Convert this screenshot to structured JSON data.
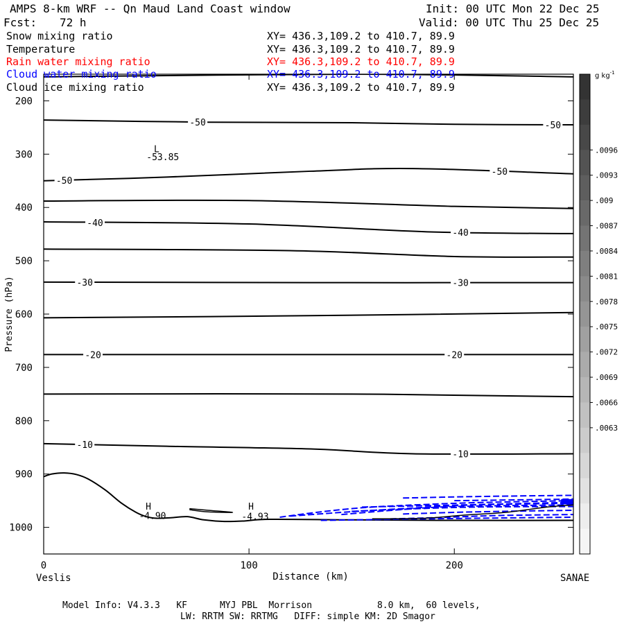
{
  "header": {
    "title": "AMPS 8-km WRF -- Qn Maud Land Coast window",
    "init": "Init: 00 UTC Mon 22 Dec 25",
    "fcst_label": "Fcst:",
    "fcst_value": "72 h",
    "valid": "Valid: 00 UTC Thu 25 Dec 25"
  },
  "fields": [
    {
      "name": "Snow mixing ratio",
      "xy": "XY= 436.3,109.2 to 410.7, 89.9",
      "color": "#000000"
    },
    {
      "name": "Temperature",
      "xy": "XY= 436.3,109.2 to 410.7, 89.9",
      "color": "#000000"
    },
    {
      "name": "Rain water mixing ratio",
      "xy": "XY= 436.3,109.2 to 410.7, 89.9",
      "color": "#ff0000"
    },
    {
      "name": "Cloud water mixing ratio",
      "xy": "XY= 436.3,109.2 to 410.7, 89.9",
      "color": "#0000ff"
    },
    {
      "name": "Cloud ice mixing ratio",
      "xy": "XY= 436.3,109.2 to 410.7, 89.9",
      "color": "#000000"
    }
  ],
  "footer": {
    "line1": "Model Info: V4.3.3   KF      MYJ PBL  Morrison            8.0 km,  60 levels,",
    "line2": "LW: RRTM SW: RRTMG   DIFF: simple KM: 2D Smagor"
  },
  "chart_data": {
    "type": "line",
    "subtype": "vertical cross-section (pressure vs distance)",
    "xlabel": "Distance (km)",
    "ylabel": "Pressure (hPa)",
    "xlim": [
      0,
      258
    ],
    "ylim": [
      1050,
      150
    ],
    "x_ticks": [
      0,
      100,
      200
    ],
    "y_ticks": [
      200,
      300,
      400,
      500,
      600,
      700,
      800,
      900,
      1000
    ],
    "x_endpoint_labels": {
      "left": "Veslis",
      "right": "SANAE"
    },
    "colorbar": {
      "unit_label": "g kg",
      "unit_exponent": "-1",
      "tick_labels": [
        ".0096",
        ".0093",
        ".009",
        ".0087",
        ".0084",
        ".0081",
        ".0078",
        ".0075",
        ".0072",
        ".0069",
        ".0066",
        ".0063"
      ],
      "colors": [
        "#333333",
        "#3d3d3d",
        "#484848",
        "#535353",
        "#5e5e5e",
        "#696969",
        "#747474",
        "#7f7f7f",
        "#8a8a8a",
        "#959595",
        "#a0a0a0",
        "#ababab",
        "#b6b6b6",
        "#c1c1c1",
        "#cccccc",
        "#d7d7d7",
        "#e2e2e2",
        "#ededed",
        "#f5f5f5"
      ]
    },
    "temperature_isotherms": [
      {
        "value": -55,
        "points": [
          [
            0,
            155
          ],
          [
            150,
            150
          ],
          [
            258,
            155
          ]
        ],
        "labels": []
      },
      {
        "value": -50,
        "points": [
          [
            0,
            236
          ],
          [
            80,
            240
          ],
          [
            150,
            241
          ],
          [
            200,
            244
          ],
          [
            258,
            245
          ]
        ],
        "labels": [
          {
            "text": "-50",
            "x": 75
          },
          {
            "text": "-50",
            "x": 248
          }
        ]
      },
      {
        "value": -50,
        "points": [
          [
            0,
            350
          ],
          [
            60,
            343
          ],
          [
            130,
            332
          ],
          [
            180,
            327
          ],
          [
            258,
            337
          ]
        ],
        "labels": [
          {
            "text": "-50",
            "x": 10
          },
          {
            "text": "-50",
            "x": 222
          }
        ]
      },
      {
        "value": -45,
        "points": [
          [
            0,
            388
          ],
          [
            100,
            387
          ],
          [
            200,
            398
          ],
          [
            258,
            402
          ]
        ],
        "labels": []
      },
      {
        "value": -40,
        "points": [
          [
            0,
            427
          ],
          [
            100,
            431
          ],
          [
            190,
            446
          ],
          [
            258,
            449
          ]
        ],
        "labels": [
          {
            "text": "-40",
            "x": 25
          },
          {
            "text": "-40",
            "x": 203
          }
        ]
      },
      {
        "value": -35,
        "points": [
          [
            0,
            478
          ],
          [
            120,
            481
          ],
          [
            200,
            492
          ],
          [
            258,
            493
          ]
        ],
        "labels": []
      },
      {
        "value": -30,
        "points": [
          [
            0,
            540
          ],
          [
            130,
            541
          ],
          [
            258,
            541
          ]
        ],
        "labels": [
          {
            "text": "-30",
            "x": 20
          },
          {
            "text": "-30",
            "x": 203
          }
        ]
      },
      {
        "value": -25,
        "points": [
          [
            0,
            607
          ],
          [
            130,
            603
          ],
          [
            258,
            597
          ]
        ],
        "labels": []
      },
      {
        "value": -20,
        "points": [
          [
            0,
            676
          ],
          [
            150,
            676
          ],
          [
            258,
            676
          ]
        ],
        "labels": [
          {
            "text": "-20",
            "x": 24
          },
          {
            "text": "-20",
            "x": 200
          }
        ]
      },
      {
        "value": -15,
        "points": [
          [
            0,
            750
          ],
          [
            150,
            750
          ],
          [
            258,
            755
          ]
        ],
        "labels": []
      },
      {
        "value": -10,
        "points": [
          [
            0,
            843
          ],
          [
            60,
            848
          ],
          [
            130,
            853
          ],
          [
            180,
            862
          ],
          [
            258,
            862
          ]
        ],
        "labels": [
          {
            "text": "-10",
            "x": 20
          },
          {
            "text": "-10",
            "x": 203
          }
        ]
      }
    ],
    "terrain": {
      "points": [
        [
          0,
          905
        ],
        [
          4,
          900
        ],
        [
          10,
          898
        ],
        [
          16,
          901
        ],
        [
          22,
          910
        ],
        [
          30,
          930
        ],
        [
          38,
          955
        ],
        [
          45,
          972
        ],
        [
          50,
          980
        ],
        [
          55,
          983
        ],
        [
          62,
          982
        ],
        [
          70,
          980
        ],
        [
          78,
          986
        ],
        [
          88,
          989
        ],
        [
          98,
          988
        ],
        [
          110,
          985
        ],
        [
          150,
          986
        ],
        [
          200,
          987
        ],
        [
          258,
          987
        ]
      ]
    },
    "annotations": [
      {
        "text": "L",
        "x": 55,
        "p": 290,
        "color": "#000000"
      },
      {
        "text": "-53.85",
        "x": 58,
        "p": 305,
        "color": "#000000"
      },
      {
        "text": "H",
        "x": 51,
        "p": 960,
        "color": "#000000"
      },
      {
        "text": "-4.90",
        "x": 53,
        "p": 978,
        "color": "#000000"
      },
      {
        "text": "H",
        "x": 101,
        "p": 960,
        "color": "#000000"
      },
      {
        "text": "-4.93",
        "x": 103,
        "p": 979,
        "color": "#000000"
      }
    ],
    "cloud_water_contours": [
      {
        "points": [
          [
            115,
            981
          ],
          [
            135,
            971
          ],
          [
            160,
            962
          ],
          [
            200,
            955
          ],
          [
            230,
            952
          ],
          [
            258,
            950
          ]
        ]
      },
      {
        "points": [
          [
            120,
            979
          ],
          [
            145,
            972
          ],
          [
            170,
            966
          ],
          [
            210,
            958
          ],
          [
            258,
            955
          ]
        ]
      },
      {
        "points": [
          [
            145,
            976
          ],
          [
            170,
            968
          ],
          [
            200,
            961
          ],
          [
            258,
            958
          ]
        ]
      },
      {
        "points": [
          [
            150,
            970
          ],
          [
            175,
            966
          ],
          [
            210,
            962
          ],
          [
            258,
            961
          ]
        ]
      },
      {
        "points": [
          [
            155,
            962
          ],
          [
            180,
            960
          ],
          [
            215,
            957
          ],
          [
            258,
            953
          ]
        ]
      },
      {
        "points": [
          [
            160,
            985
          ],
          [
            190,
            982
          ],
          [
            220,
            978
          ],
          [
            258,
            976
          ]
        ]
      },
      {
        "points": [
          [
            175,
            945
          ],
          [
            215,
            942
          ],
          [
            258,
            940
          ]
        ]
      },
      {
        "points": [
          [
            175,
            975
          ],
          [
            210,
            971
          ],
          [
            258,
            968
          ]
        ]
      },
      {
        "points": [
          [
            200,
            950
          ],
          [
            240,
            948
          ],
          [
            258,
            947
          ]
        ]
      },
      {
        "points": [
          [
            135,
            987
          ],
          [
            170,
            985
          ],
          [
            210,
            983
          ],
          [
            258,
            981
          ]
        ]
      }
    ],
    "cloud_ice_contours": [
      {
        "points": [
          [
            71,
            965
          ],
          [
            80,
            968
          ],
          [
            92,
            972
          ],
          [
            80,
            971
          ],
          [
            71,
            967
          ]
        ]
      },
      {
        "points": [
          [
            160,
            984
          ],
          [
            185,
            983
          ],
          [
            205,
            977
          ],
          [
            225,
            972
          ],
          [
            245,
            962
          ],
          [
            258,
            958
          ]
        ]
      }
    ]
  }
}
